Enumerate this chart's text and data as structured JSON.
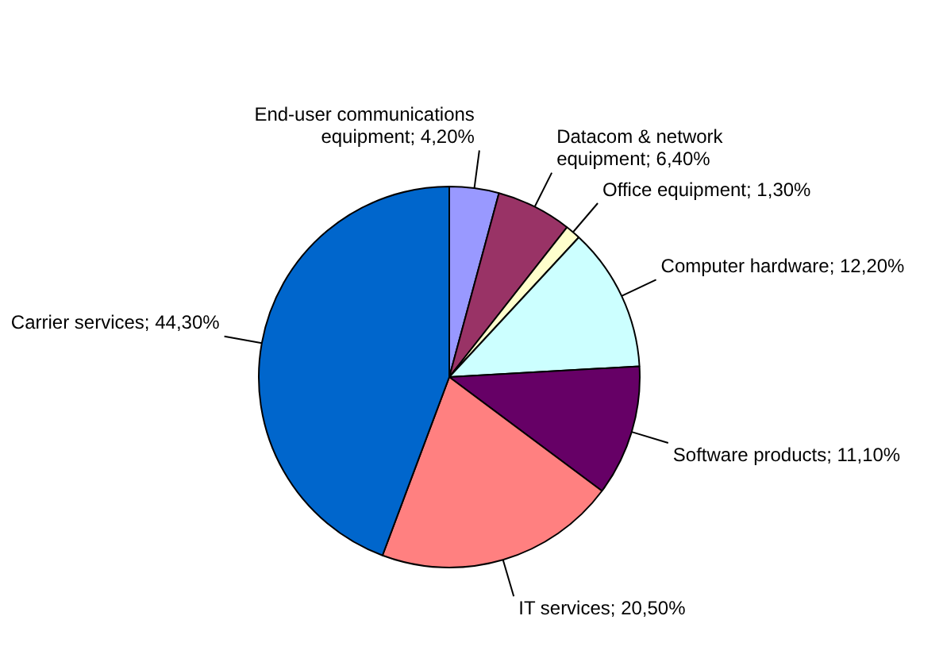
{
  "chart_data": {
    "type": "pie",
    "categories": [
      "End-user communications equipment",
      "Datacom & network equipment",
      "Office equipment",
      "Computer hardware",
      "Software products",
      "IT services",
      "Carrier services"
    ],
    "values": [
      4.2,
      6.4,
      1.3,
      12.2,
      11.1,
      20.5,
      44.3
    ],
    "value_labels": [
      "4,20%",
      "6,40%",
      "1,30%",
      "12,20%",
      "11,10%",
      "20,50%",
      "44,30%"
    ],
    "colors": [
      "#9999ff",
      "#993366",
      "#ffffcc",
      "#ccffff",
      "#660066",
      "#ff8080",
      "#0066cc"
    ],
    "legend": false
  }
}
